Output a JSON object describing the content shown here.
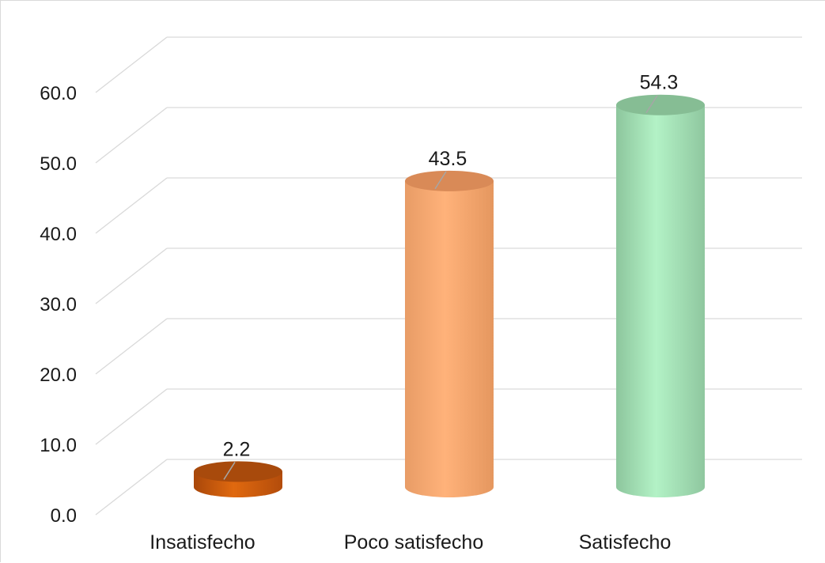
{
  "chart_data": {
    "type": "bar",
    "style": "3d-cylinder",
    "categories": [
      "Insatisfecho",
      "Poco satisfecho",
      "Satisfecho"
    ],
    "values": [
      2.2,
      43.5,
      54.3
    ],
    "data_labels": [
      "2.2",
      "43.5",
      "54.3"
    ],
    "y_ticks": [
      "0.0",
      "10.0",
      "20.0",
      "30.0",
      "40.0",
      "50.0",
      "60.0"
    ],
    "ylim": [
      0,
      60
    ],
    "grid": true,
    "legend": "none",
    "colors": [
      "#c55a11",
      "#f4b183",
      "#a9d18e"
    ]
  }
}
